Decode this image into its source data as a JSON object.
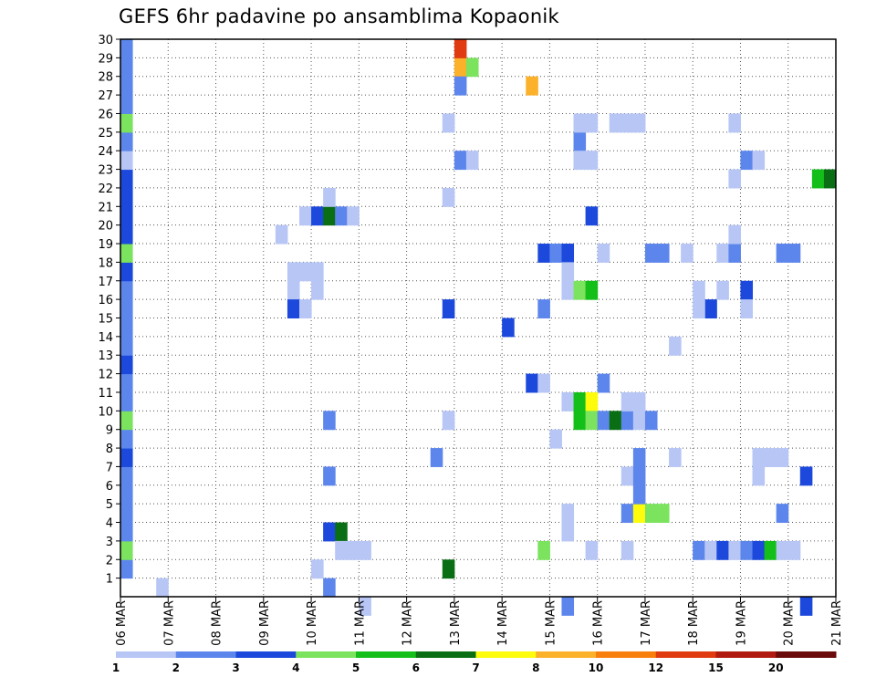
{
  "chart_data": {
    "type": "heatmap",
    "title": "GEFS 6hr padavine po ansamblima Kopaonik",
    "ylim": [
      0,
      30
    ],
    "y_ticks": [
      1,
      2,
      3,
      4,
      5,
      6,
      7,
      8,
      9,
      10,
      11,
      12,
      13,
      14,
      15,
      16,
      17,
      18,
      19,
      20,
      21,
      22,
      23,
      24,
      25,
      26,
      27,
      28,
      29,
      30
    ],
    "x_ticks": [
      "06 MAR",
      "07 MAR",
      "08 MAR",
      "09 MAR",
      "10 MAR",
      "11 MAR",
      "12 MAR",
      "13 MAR",
      "14 MAR",
      "15 MAR",
      "16 MAR",
      "17 MAR",
      "18 MAR",
      "19 MAR",
      "20 MAR",
      "21 MAR"
    ],
    "x_tick_days": [
      0,
      1,
      2,
      3,
      4,
      5,
      6,
      7,
      8,
      9,
      10,
      11,
      12,
      13,
      14,
      15
    ],
    "x_range_days": [
      0,
      15
    ],
    "grid": true,
    "colorbar": {
      "labels": [
        "1",
        "2",
        "3",
        "4",
        "5",
        "6",
        "7",
        "8",
        "10",
        "12",
        "15",
        "20"
      ],
      "colors": [
        "#b7c6f5",
        "#5d86ec",
        "#1c49dc",
        "#7be35d",
        "#14bf1a",
        "#0a6e14",
        "#fcfc0c",
        "#fcb12a",
        "#f97f0c",
        "#e03a10",
        "#b11a10",
        "#6a0a0a"
      ]
    },
    "cells": [
      [
        0.0,
        1,
        1
      ],
      [
        0.0,
        2,
        3
      ],
      [
        0.0,
        3,
        1
      ],
      [
        0.0,
        4,
        1
      ],
      [
        0.0,
        5,
        1
      ],
      [
        0.0,
        6,
        1
      ],
      [
        0.0,
        7,
        2
      ],
      [
        0.0,
        8,
        1
      ],
      [
        0.0,
        9,
        3
      ],
      [
        0.0,
        10,
        1
      ],
      [
        0.0,
        11,
        1
      ],
      [
        0.0,
        12,
        2
      ],
      [
        0.0,
        13,
        1
      ],
      [
        0.0,
        14,
        1
      ],
      [
        0.0,
        15,
        1
      ],
      [
        0.0,
        16,
        1
      ],
      [
        0.0,
        17,
        2
      ],
      [
        0.0,
        18,
        3
      ],
      [
        0.0,
        19,
        2
      ],
      [
        0.0,
        20,
        2
      ],
      [
        0.0,
        21,
        2
      ],
      [
        0.0,
        22,
        2
      ],
      [
        0.0,
        23,
        0
      ],
      [
        0.0,
        24,
        1
      ],
      [
        0.0,
        25,
        3
      ],
      [
        0.0,
        26,
        1
      ],
      [
        0.0,
        27,
        1
      ],
      [
        0.0,
        28,
        1
      ],
      [
        0.0,
        29,
        1
      ],
      [
        0.75,
        0,
        0
      ],
      [
        3.25,
        19,
        0
      ],
      [
        3.5,
        17,
        0
      ],
      [
        3.75,
        17,
        0
      ],
      [
        4.0,
        17,
        0
      ],
      [
        3.5,
        16,
        0
      ],
      [
        4.0,
        16,
        0
      ],
      [
        3.5,
        15,
        2
      ],
      [
        3.75,
        15,
        0
      ],
      [
        3.75,
        20,
        0
      ],
      [
        4.0,
        20,
        2
      ],
      [
        4.25,
        20,
        5
      ],
      [
        4.5,
        20,
        1
      ],
      [
        4.75,
        20,
        0
      ],
      [
        4.25,
        21,
        0
      ],
      [
        4.25,
        3,
        2
      ],
      [
        4.5,
        3,
        5
      ],
      [
        4.5,
        2,
        0
      ],
      [
        4.75,
        2,
        0
      ],
      [
        5.0,
        2,
        0
      ],
      [
        4.0,
        1,
        0
      ],
      [
        4.25,
        0,
        1
      ],
      [
        4.25,
        6,
        1
      ],
      [
        4.25,
        9,
        1
      ],
      [
        5.0,
        -1,
        0
      ],
      [
        6.75,
        1,
        5
      ],
      [
        6.5,
        7,
        1
      ],
      [
        6.75,
        9,
        0
      ],
      [
        6.75,
        15,
        2
      ],
      [
        6.75,
        21,
        0
      ],
      [
        6.75,
        25,
        0
      ],
      [
        7.0,
        23,
        1
      ],
      [
        7.25,
        23,
        0
      ],
      [
        7.0,
        28,
        7
      ],
      [
        7.25,
        28,
        3
      ],
      [
        7.0,
        29,
        9
      ],
      [
        7.0,
        27,
        1
      ],
      [
        8.0,
        14,
        2
      ],
      [
        8.5,
        27,
        7
      ],
      [
        8.5,
        11,
        2
      ],
      [
        8.75,
        11,
        0
      ],
      [
        8.75,
        2,
        3
      ],
      [
        8.75,
        15,
        1
      ],
      [
        8.75,
        18,
        2
      ],
      [
        9.0,
        18,
        1
      ],
      [
        9.25,
        18,
        2
      ],
      [
        9.25,
        16,
        0
      ],
      [
        9.5,
        16,
        3
      ],
      [
        9.75,
        16,
        4
      ],
      [
        9.25,
        17,
        0
      ],
      [
        9.0,
        8,
        0
      ],
      [
        9.25,
        10,
        0
      ],
      [
        9.5,
        10,
        4
      ],
      [
        9.75,
        10,
        6
      ],
      [
        9.5,
        9,
        4
      ],
      [
        9.75,
        9,
        3
      ],
      [
        10.0,
        9,
        1
      ],
      [
        10.25,
        9,
        5
      ],
      [
        10.5,
        9,
        1
      ],
      [
        10.75,
        9,
        0
      ],
      [
        9.25,
        4,
        0
      ],
      [
        9.25,
        3,
        0
      ],
      [
        9.25,
        -1,
        1
      ],
      [
        9.5,
        24,
        1
      ],
      [
        9.5,
        23,
        0
      ],
      [
        9.75,
        23,
        0
      ],
      [
        9.75,
        2,
        0
      ],
      [
        10.0,
        18,
        0
      ],
      [
        9.5,
        25,
        0
      ],
      [
        9.75,
        25,
        0
      ],
      [
        9.75,
        20,
        2
      ],
      [
        10.0,
        11,
        1
      ],
      [
        10.25,
        25,
        0
      ],
      [
        10.5,
        25,
        0
      ],
      [
        10.75,
        25,
        0
      ],
      [
        10.5,
        10,
        0
      ],
      [
        10.75,
        10,
        0
      ],
      [
        10.5,
        6,
        0
      ],
      [
        10.5,
        4,
        1
      ],
      [
        10.75,
        4,
        6
      ],
      [
        11.0,
        4,
        3
      ],
      [
        11.25,
        4,
        3
      ],
      [
        10.5,
        2,
        0
      ],
      [
        10.75,
        5,
        1
      ],
      [
        10.75,
        6,
        1
      ],
      [
        10.75,
        7,
        1
      ],
      [
        11.0,
        18,
        1
      ],
      [
        11.25,
        18,
        1
      ],
      [
        11.0,
        9,
        1
      ],
      [
        11.5,
        13,
        0
      ],
      [
        11.5,
        7,
        0
      ],
      [
        11.75,
        18,
        0
      ],
      [
        12.0,
        16,
        0
      ],
      [
        12.25,
        15,
        2
      ],
      [
        12.5,
        16,
        0
      ],
      [
        12.0,
        15,
        0
      ],
      [
        12.0,
        2,
        1
      ],
      [
        12.25,
        2,
        0
      ],
      [
        12.5,
        2,
        2
      ],
      [
        12.75,
        2,
        0
      ],
      [
        13.0,
        2,
        1
      ],
      [
        13.25,
        2,
        2
      ],
      [
        13.5,
        2,
        4
      ],
      [
        13.75,
        2,
        0
      ],
      [
        14.0,
        2,
        0
      ],
      [
        12.5,
        18,
        0
      ],
      [
        12.75,
        18,
        1
      ],
      [
        12.75,
        19,
        0
      ],
      [
        12.75,
        22,
        0
      ],
      [
        12.75,
        25,
        0
      ],
      [
        13.0,
        23,
        1
      ],
      [
        13.25,
        23,
        0
      ],
      [
        13.0,
        16,
        2
      ],
      [
        13.0,
        15,
        0
      ],
      [
        13.25,
        6,
        0
      ],
      [
        13.25,
        7,
        0
      ],
      [
        13.5,
        7,
        0
      ],
      [
        13.75,
        7,
        0
      ],
      [
        13.75,
        18,
        1
      ],
      [
        14.0,
        18,
        1
      ],
      [
        13.75,
        4,
        1
      ],
      [
        14.25,
        6,
        2
      ],
      [
        14.5,
        22,
        4
      ],
      [
        14.75,
        22,
        5
      ],
      [
        14.25,
        -1,
        2
      ]
    ]
  }
}
